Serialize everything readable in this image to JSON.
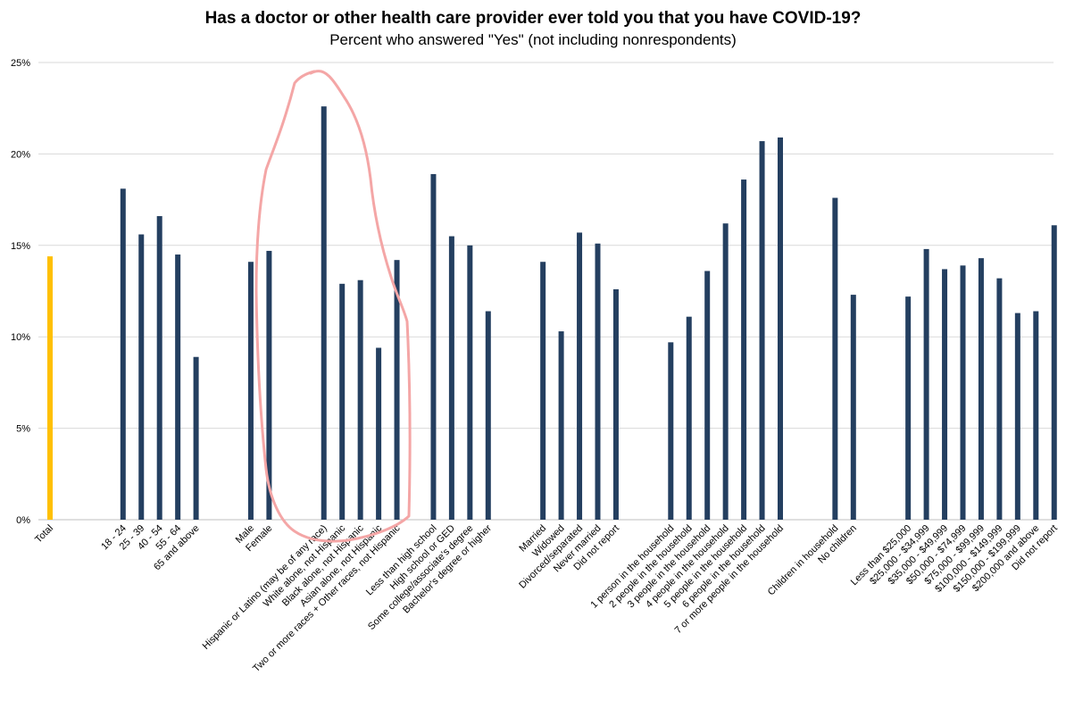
{
  "chart_data": {
    "type": "bar",
    "title": "Has a doctor or other health care provider ever told you that you have COVID-19?",
    "subtitle": "Percent who answered \"Yes\" (not including nonrespondents)",
    "xlabel": "",
    "ylabel": "",
    "ylim": [
      0,
      25
    ],
    "yticks": [
      "0%",
      "5%",
      "10%",
      "15%",
      "20%",
      "25%"
    ],
    "grid": true,
    "colors": {
      "total": "#FFC000",
      "bars": "#243F60",
      "annotation": "#F4A6A6"
    },
    "groups": [
      {
        "categories": [
          "Total"
        ],
        "values": [
          14.4
        ]
      },
      {
        "categories": [
          "18 - 24",
          "25 - 39",
          "40 - 54",
          "55 - 64",
          "65 and above"
        ],
        "values": [
          18.1,
          15.6,
          16.6,
          14.5,
          8.9
        ]
      },
      {
        "categories": [
          "Male",
          "Female"
        ],
        "values": [
          14.1,
          14.7
        ]
      },
      {
        "categories": [
          "Hispanic or Latino (may be of any race)",
          "White alone, not Hispanic",
          "Black alone, not Hispanic",
          "Asian alone, not Hispanic",
          "Two or more races + Other races, not Hispanic"
        ],
        "values": [
          22.6,
          12.9,
          13.1,
          9.4,
          14.2
        ]
      },
      {
        "categories": [
          "Less than high school",
          "High school or GED",
          "Some college/associate's degree",
          "Bachelor's degree or higher"
        ],
        "values": [
          18.9,
          15.5,
          15.0,
          11.4
        ]
      },
      {
        "categories": [
          "Married",
          "Widowed",
          "Divorced/separated",
          "Never married",
          "Did not report"
        ],
        "values": [
          14.1,
          10.3,
          15.7,
          15.1,
          12.6
        ]
      },
      {
        "categories": [
          "1 person in the household",
          "2 people in the household",
          "3 people in the household",
          "4 people in the household",
          "5 people in the household",
          "6 people in the household",
          "7 or more people in the household"
        ],
        "values": [
          9.7,
          11.1,
          13.6,
          16.2,
          18.6,
          20.7,
          20.9
        ]
      },
      {
        "categories": [
          "Children in household",
          "No children"
        ],
        "values": [
          17.6,
          12.3
        ]
      },
      {
        "categories": [
          "Less than $25,000",
          "$25,000 - $34,999",
          "$35,000 - $49,999",
          "$50,000 - $74,999",
          "$75,000 - $99,999",
          "$100,000 - $149,999",
          "$150,000 - $199,999",
          "$200,000 and above",
          "Did not report"
        ],
        "values": [
          12.2,
          14.8,
          13.7,
          13.9,
          14.3,
          13.2,
          11.3,
          11.4,
          16.1
        ]
      }
    ]
  }
}
